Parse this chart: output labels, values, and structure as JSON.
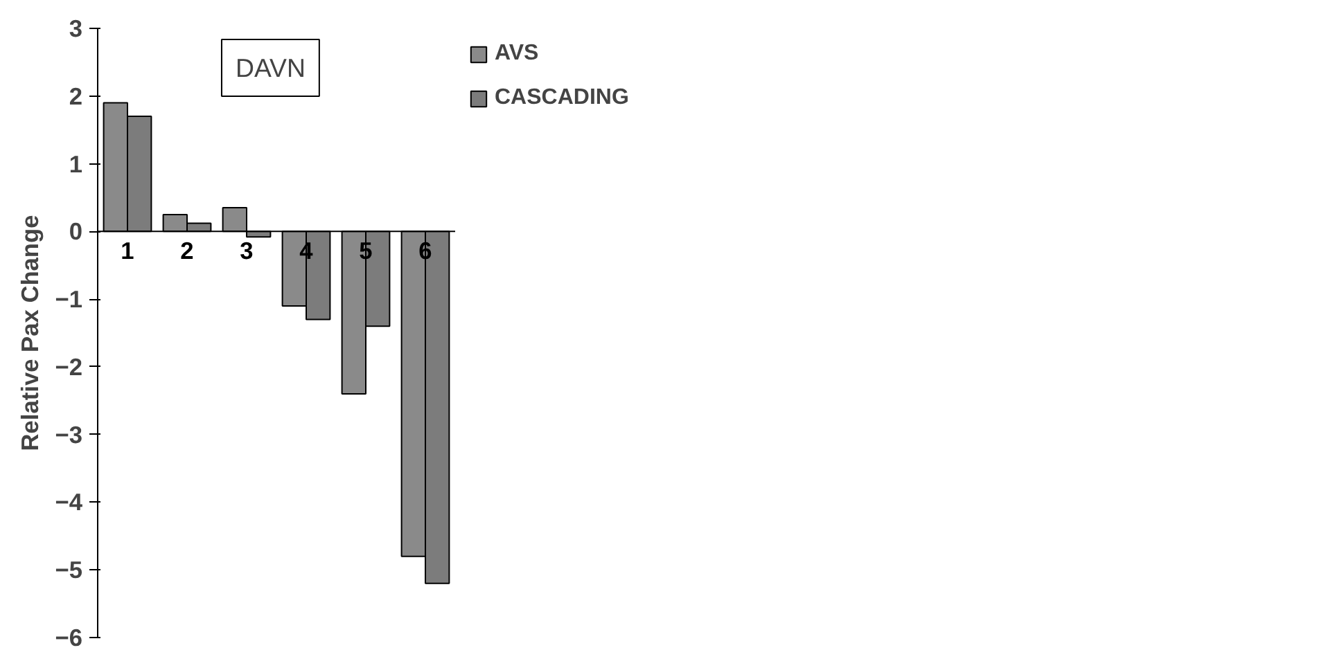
{
  "chart_data": {
    "type": "bar",
    "title": "DAVN",
    "ylabel": "Relative Pax Change",
    "categories": [
      "1",
      "2",
      "3",
      "4",
      "5",
      "6"
    ],
    "series": [
      {
        "name": "AVS",
        "color": "#8a8a8a",
        "values": [
          1.9,
          0.25,
          0.35,
          -1.1,
          -2.4,
          -4.8
        ]
      },
      {
        "name": "CASCADING",
        "color": "#7c7c7c",
        "values": [
          1.7,
          0.12,
          -0.08,
          -1.3,
          -1.4,
          -5.2
        ]
      }
    ],
    "ylim": [
      -6,
      3
    ],
    "yticks": [
      -6,
      -5,
      -4,
      -3,
      -2,
      -1,
      0,
      1,
      2,
      3
    ],
    "grid": false,
    "legend": "top right"
  }
}
